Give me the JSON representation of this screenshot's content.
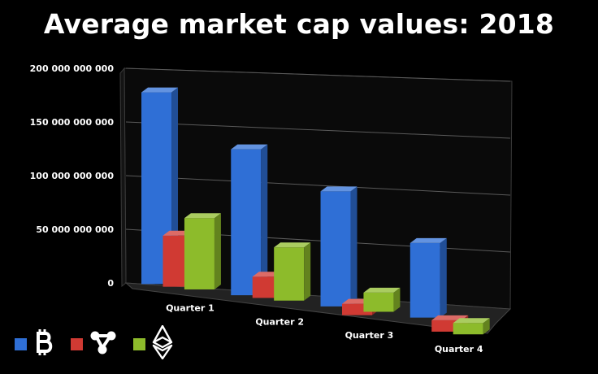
{
  "chart_data": {
    "type": "bar",
    "title": "Average market cap values: 2018",
    "categories": [
      "Quarter 1",
      "Quarter 2",
      "Quarter 3",
      "Quarter 4"
    ],
    "series": [
      {
        "icon": "bitcoin-icon",
        "color": "#2f6fd6",
        "values": [
          180000000000,
          137000000000,
          108000000000,
          70000000000
        ]
      },
      {
        "icon": "ripple-icon",
        "color": "#d03a33",
        "values": [
          48000000000,
          20000000000,
          5000000000,
          -3000000000
        ]
      },
      {
        "icon": "ethereum-icon",
        "color": "#8dbb2b",
        "values": [
          67000000000,
          50000000000,
          18000000000,
          -4000000000
        ]
      }
    ],
    "ylim": [
      0,
      200000000000
    ],
    "yticks": [
      0,
      50000000000,
      100000000000,
      150000000000,
      200000000000
    ],
    "ytick_labels": [
      "0",
      "50 000 000 000",
      "100 000 000 000",
      "150 000 000 000",
      "200 000 000 000"
    ],
    "grid": true,
    "legend_position": "bottom-left",
    "style": "3d-clustered-column"
  }
}
